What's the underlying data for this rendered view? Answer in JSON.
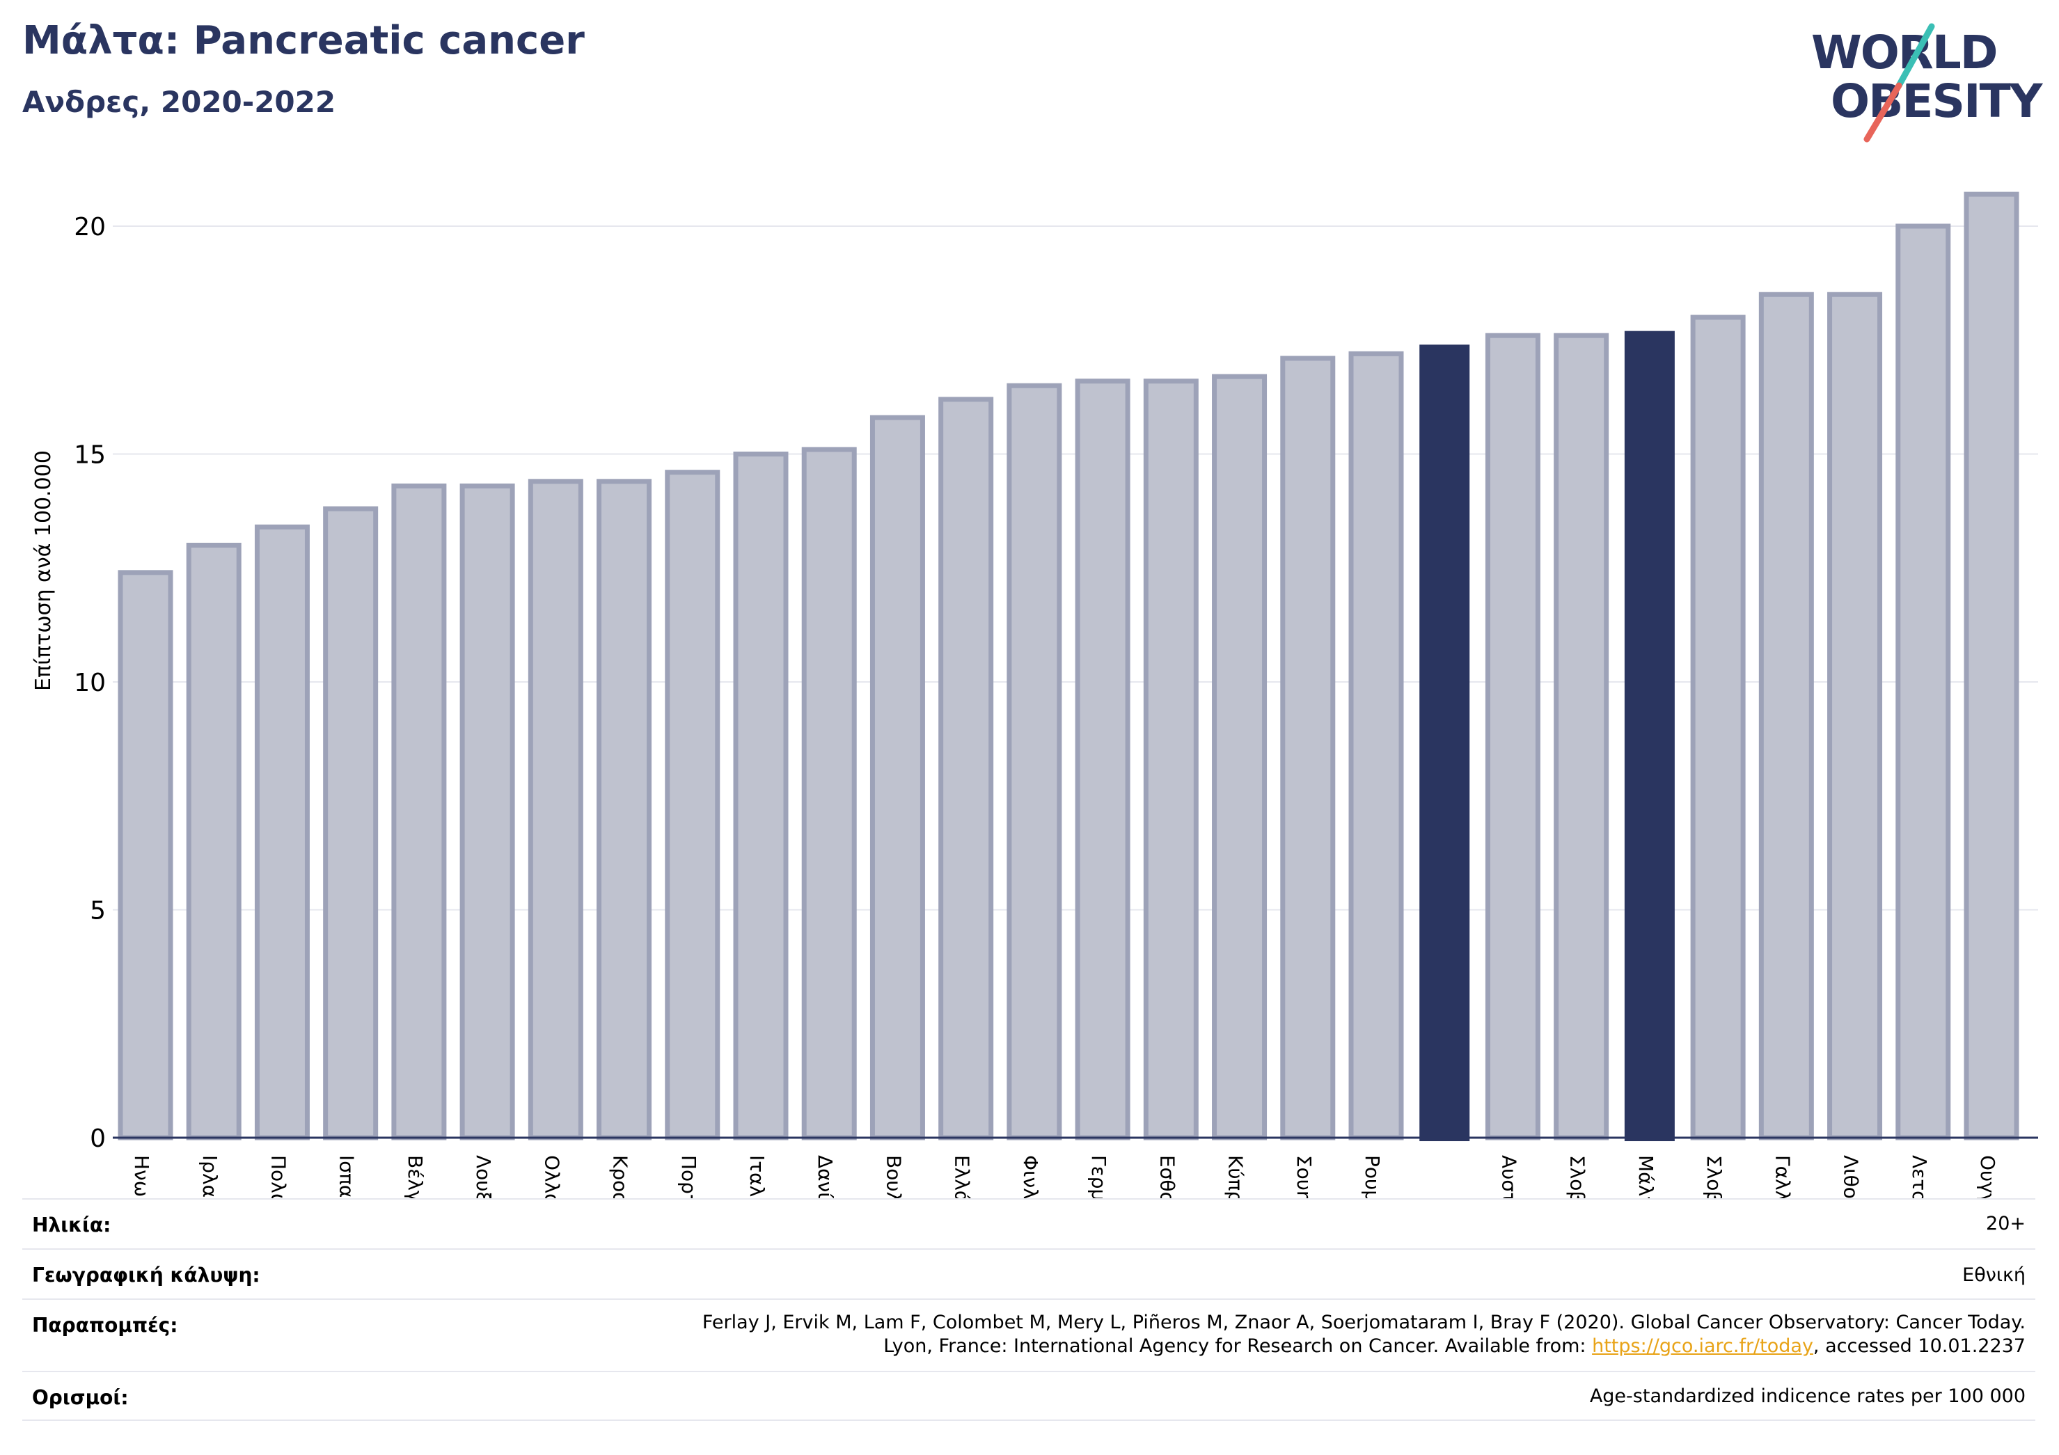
{
  "header": {
    "title": "Μάλτα: Pancreatic cancer",
    "subtitle": "Ανδρες, 2020-2022"
  },
  "logo": {
    "line1": "WORLD",
    "line2": "OBESITY",
    "colors": {
      "text": "#2a3560",
      "slash_top": "#3bbfb5",
      "slash_bottom": "#e8655a"
    }
  },
  "chart_data": {
    "type": "bar",
    "title": "Μάλτα: Pancreatic cancer",
    "subtitle": "Ανδρες, 2020-2022",
    "xlabel": "",
    "ylabel": "Επίπτωση ανά 100.000",
    "ylim": [
      0,
      21
    ],
    "yticks": [
      0,
      5,
      10,
      15,
      20
    ],
    "grid": true,
    "legend": "none",
    "categories": [
      "Ηνωμένο Βασίλειο",
      "Ιρλανδία",
      "Πολωνία",
      "Ισπανία",
      "Βέλγιο",
      "Λουξεμβούργο",
      "Ολλανδία",
      "Κροατία",
      "Πορτογαλία",
      "Ιταλία",
      "Δανία",
      "Βουλγαρία",
      "Ελλάδα",
      "Φινλανδία",
      "Γερμανία",
      "Εσθονία",
      "Κύπρος",
      "Σουηδία",
      "Ρουμανία",
      "",
      "Αυστρία",
      "Σλοβενία",
      "Μάλτα",
      "Σλοβακία",
      "Γαλλία",
      "Λιθουανία",
      "Λετονία",
      "Ουγγαρία"
    ],
    "values": [
      12.4,
      13.0,
      13.4,
      13.8,
      14.3,
      14.3,
      14.4,
      14.4,
      14.6,
      15.0,
      15.1,
      15.8,
      16.2,
      16.5,
      16.6,
      16.6,
      16.7,
      17.1,
      17.2,
      17.4,
      17.6,
      17.6,
      17.7,
      18.0,
      18.5,
      18.5,
      20.0,
      20.7
    ],
    "highlighted": [
      "",
      "Μάλτα"
    ],
    "colors": {
      "bar": "#bfc2cf",
      "bar_outline": "#9da2b8",
      "highlight": "#2a3560",
      "grid": "#e6e7ee",
      "axis": "#2a3560"
    }
  },
  "info": {
    "age": {
      "label": "Ηλικία:",
      "value": "20+"
    },
    "coverage": {
      "label": "Γεωγραφική κάλυψη:",
      "value": "Εθνική"
    },
    "references": {
      "label": "Παραπομπές:",
      "line1": "Ferlay J, Ervik M, Lam F, Colombet M, Mery L, Piñeros M, Znaor A, Soerjomataram I, Bray F (2020). Global Cancer Observatory: Cancer Today.",
      "line2_prefix": "Lyon, France: International Agency for Research on Cancer. Available from: ",
      "link": "https://gco.iarc.fr/today",
      "line2_suffix": ", accessed 10.01.2237"
    },
    "definitions": {
      "label": "Ορισμοί:",
      "value": "Age-standardized indicence rates per 100 000"
    }
  }
}
